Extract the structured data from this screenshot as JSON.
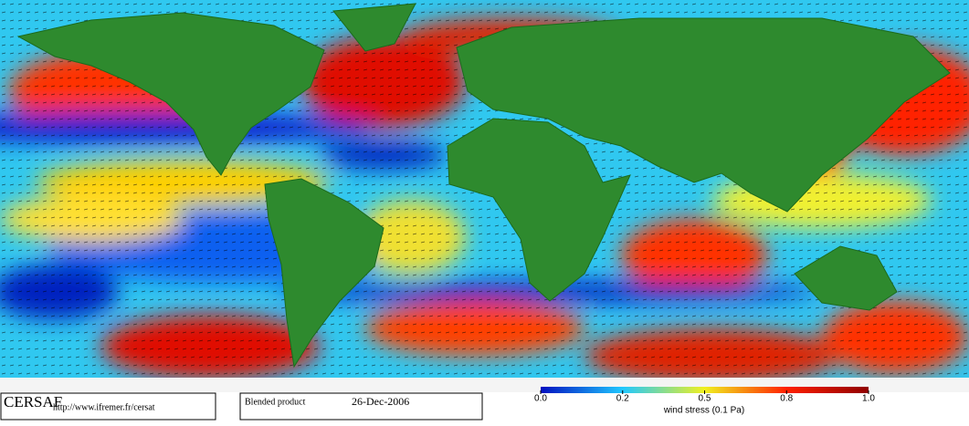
{
  "footer": {
    "logo": "CERSAF",
    "url": "http://www.ifremer.fr/cersat",
    "product": "Blended product",
    "date": "26-Dec-2006"
  },
  "colorbar": {
    "label": "wind stress (0.1 Pa)",
    "ticks": [
      {
        "value": 0,
        "label": "0.0"
      },
      0.2,
      0.5,
      0.8,
      {
        "value": 1,
        "label": "1.0"
      }
    ],
    "colors": [
      "#0010c0",
      "#20c8ff",
      "#f0f020",
      "#ff2000",
      "#900000"
    ]
  }
}
